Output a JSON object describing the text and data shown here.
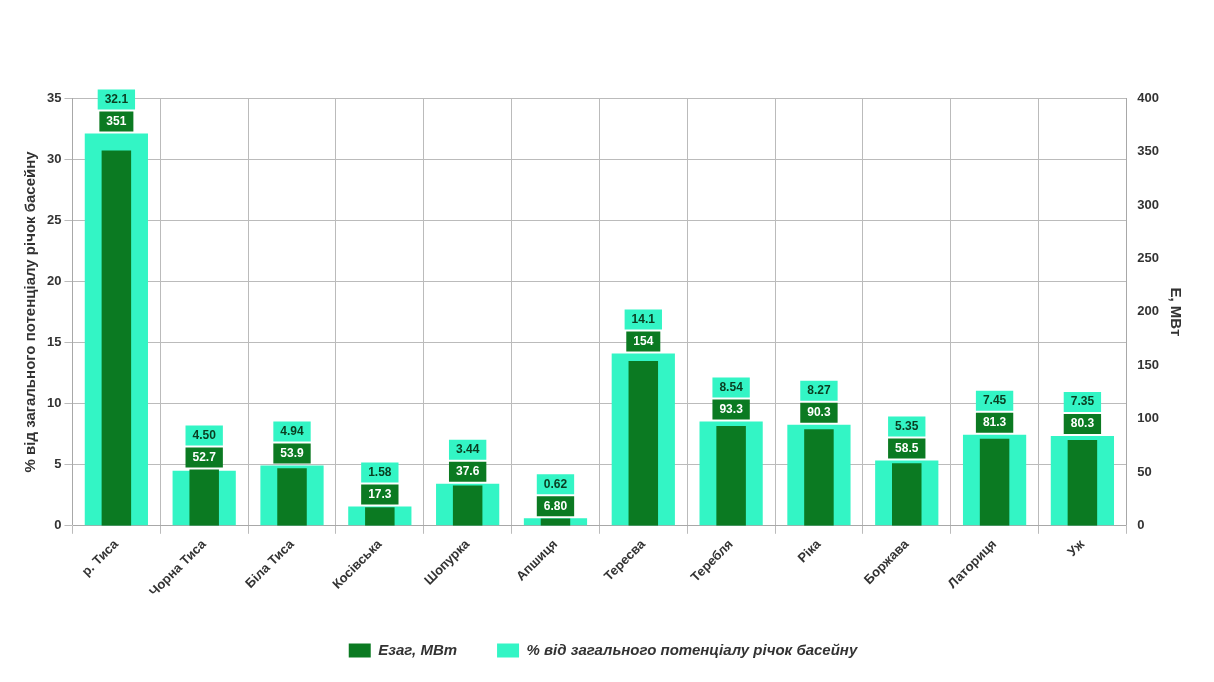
{
  "chart_data": {
    "type": "bar",
    "ylabel": "% від загального потенціалу річок басейну",
    "y2label": "E, МВт",
    "categories": [
      "р. Тиса",
      "Чорна Тиса",
      "Біла Тиса",
      "Косівська",
      "Шопурка",
      "Апшиця",
      "Тересва",
      "Теребля",
      "Ріка",
      "Боржава",
      "Латориця",
      "Уж"
    ],
    "series": [
      {
        "name": "% від загального потенціалу річок басейну",
        "color": "#33f5c5",
        "values": [
          32.1,
          4.5,
          4.94,
          1.58,
          3.44,
          0.62,
          14.1,
          8.54,
          8.27,
          5.35,
          7.45,
          7.35
        ],
        "value_labels": [
          "32.1",
          "4.50",
          "4.94",
          "1.58",
          "3.44",
          "0.62",
          "14.1",
          "8.54",
          "8.27",
          "5.35",
          "7.45",
          "7.35"
        ]
      },
      {
        "name": "Езаг, МВт",
        "color": "#0b7a22",
        "axis": "y2",
        "values": [
          351,
          52.7,
          53.9,
          17.3,
          37.6,
          6.8,
          154,
          93.3,
          90.3,
          58.5,
          81.3,
          80.3
        ],
        "value_labels": [
          "351",
          "52.7",
          "53.9",
          "17.3",
          "37.6",
          "6.80",
          "154",
          "93.3",
          "90.3",
          "58.5",
          "81.3",
          "80.3"
        ]
      }
    ],
    "ylim": [
      0,
      35
    ],
    "yticks": [
      0,
      5,
      10,
      15,
      20,
      25,
      30,
      35
    ],
    "y2lim": [
      0,
      400
    ],
    "y2ticks": [
      0,
      50,
      100,
      150,
      200,
      250,
      300,
      350,
      400
    ],
    "grid": true,
    "legend": "bottom"
  }
}
